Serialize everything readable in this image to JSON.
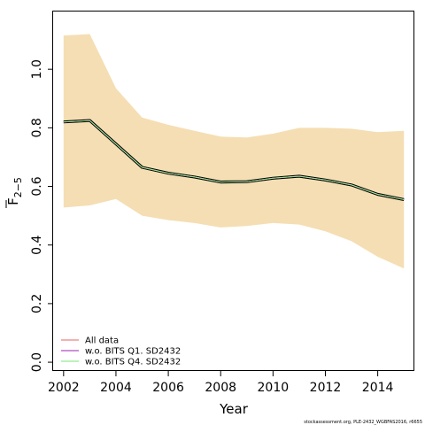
{
  "chart_data": {
    "type": "line",
    "xlabel": "Year",
    "ylabel_base": "F",
    "ylabel_sub": "2−5",
    "xlim": [
      2001.6,
      2015.4
    ],
    "ylim": [
      -0.03,
      1.2
    ],
    "x_ticks": [
      {
        "v": 2002,
        "label": "2002"
      },
      {
        "v": 2004,
        "label": "2004"
      },
      {
        "v": 2006,
        "label": "2006"
      },
      {
        "v": 2008,
        "label": "2008"
      },
      {
        "v": 2010,
        "label": "2010"
      },
      {
        "v": 2012,
        "label": "2012"
      },
      {
        "v": 2014,
        "label": "2014"
      }
    ],
    "y_ticks": [
      {
        "v": 0.0,
        "label": "0.0"
      },
      {
        "v": 0.2,
        "label": "0.2"
      },
      {
        "v": 0.4,
        "label": "0.4"
      },
      {
        "v": 0.6,
        "label": "0.6"
      },
      {
        "v": 0.8,
        "label": "0.8"
      },
      {
        "v": 1.0,
        "label": "1.0"
      }
    ],
    "band_color": "#f5deb3",
    "x": [
      2002,
      2003,
      2004,
      2005,
      2006,
      2007,
      2008,
      2009,
      2010,
      2011,
      2012,
      2013,
      2014,
      2015
    ],
    "band_upper": [
      1.115,
      1.12,
      0.935,
      0.835,
      0.81,
      0.79,
      0.77,
      0.767,
      0.78,
      0.8,
      0.8,
      0.797,
      0.785,
      0.79
    ],
    "band_lower": [
      0.528,
      0.535,
      0.557,
      0.5,
      0.485,
      0.475,
      0.46,
      0.465,
      0.475,
      0.47,
      0.447,
      0.413,
      0.36,
      0.32
    ],
    "main_line": [
      0.82,
      0.825,
      0.745,
      0.665,
      0.645,
      0.632,
      0.615,
      0.616,
      0.628,
      0.635,
      0.622,
      0.605,
      0.573,
      0.555
    ],
    "main_line_color": "#000000",
    "series": [
      {
        "name": "All data",
        "color": "#f08080",
        "values": [
          0.82,
          0.825,
          0.745,
          0.665,
          0.645,
          0.632,
          0.615,
          0.616,
          0.628,
          0.635,
          0.622,
          0.605,
          0.573,
          0.555
        ]
      },
      {
        "name": "w.o. BITS Q1. SD2432",
        "color": "#b04fc0",
        "values": [
          0.82,
          0.825,
          0.745,
          0.665,
          0.645,
          0.632,
          0.615,
          0.616,
          0.628,
          0.635,
          0.622,
          0.605,
          0.573,
          0.555
        ]
      },
      {
        "name": "w.o. BITS Q4. SD2432",
        "color": "#90ee90",
        "values": [
          0.82,
          0.825,
          0.745,
          0.665,
          0.645,
          0.632,
          0.615,
          0.616,
          0.628,
          0.635,
          0.622,
          0.605,
          0.573,
          0.555
        ]
      }
    ],
    "legend_position": "bottom-left",
    "grid": false
  },
  "footnote": "stockassessment.org,  PLE-2432_WGBFAS2016,  r6655"
}
